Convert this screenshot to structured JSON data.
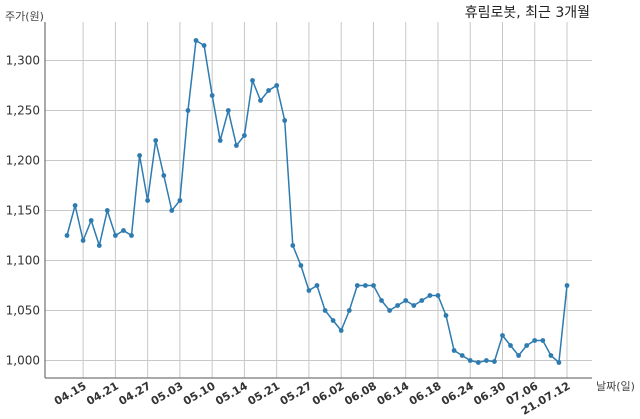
{
  "chart_data": {
    "type": "line",
    "title": "휴림로봇, 최근 3개월",
    "ylabel": "주가(원)",
    "xlabel": "날짜(일)",
    "ylim": [
      980,
      1340
    ],
    "yticks": [
      1000,
      1050,
      1100,
      1150,
      1200,
      1250,
      1300
    ],
    "ytick_labels": [
      "1,000",
      "1,050",
      "1,100",
      "1,150",
      "1,200",
      "1,250",
      "1,300"
    ],
    "xtick_labels": [
      "04.15",
      "04.21",
      "04.27",
      "05.03",
      "05.10",
      "05.14",
      "05.21",
      "05.27",
      "06.02",
      "06.08",
      "06.14",
      "06.18",
      "06.24",
      "06.30",
      "07.06",
      "21.07.12"
    ],
    "xtick_index": [
      2,
      6,
      10,
      14,
      18,
      22,
      26,
      30,
      34,
      38,
      42,
      46,
      50,
      54,
      58,
      62
    ],
    "grid": true,
    "line_color": "#2e7bb0",
    "series": [
      {
        "name": "",
        "values": [
          1125,
          1155,
          1120,
          1140,
          1115,
          1150,
          1125,
          1130,
          1125,
          1205,
          1160,
          1220,
          1185,
          1150,
          1160,
          1250,
          1320,
          1315,
          1265,
          1220,
          1250,
          1215,
          1225,
          1280,
          1260,
          1270,
          1275,
          1240,
          1115,
          1095,
          1070,
          1075,
          1050,
          1040,
          1030,
          1050,
          1075,
          1075,
          1075,
          1060,
          1050,
          1055,
          1060,
          1055,
          1060,
          1065,
          1065,
          1045,
          1010,
          1005,
          1000,
          998,
          1000,
          999,
          1025,
          1015,
          1005,
          1015,
          1020,
          1020,
          1005,
          998,
          1075
        ]
      }
    ]
  }
}
